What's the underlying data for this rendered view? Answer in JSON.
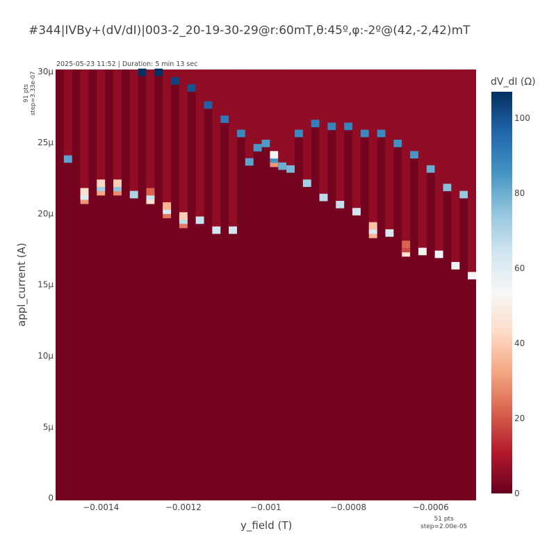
{
  "title": "#344|IVBy+(dV/dI)|003-2_20-19-30-29@r:60mT,θ:45º,φ:-2º@(42,-2,42)mT",
  "meta": "2025-05-23 11:52 | Duration: 5 min 13 sec",
  "y_points": {
    "line1": "91 pts",
    "line2": "step=3.33e-07"
  },
  "x_points": {
    "line1": "51 pts",
    "line2": "step=2.00e-05"
  },
  "colorbar": {
    "title": "dV_dI (Ω)",
    "range": [
      0,
      107
    ],
    "ticks": [
      0,
      20,
      40,
      60,
      80,
      100
    ],
    "colorscale": [
      "#67001f",
      "#b2182b",
      "#d6604d",
      "#f4a582",
      "#fddbc7",
      "#f7f7f7",
      "#d1e5f0",
      "#92c5de",
      "#4393c3",
      "#2166ac",
      "#053061"
    ]
  },
  "chart_data": {
    "type": "heatmap",
    "xlabel": "y_field (T)",
    "ylabel": "appl_current (A)",
    "xlim": [
      -0.0015,
      -0.0005
    ],
    "ylim": [
      0,
      3e-05
    ],
    "x_ticks": [
      {
        "value": -0.0014,
        "label": "−0.0014"
      },
      {
        "value": -0.0012,
        "label": "−0.0012"
      },
      {
        "value": -0.001,
        "label": "−0.001"
      },
      {
        "value": -0.0008,
        "label": "−0.0008"
      },
      {
        "value": -0.0006,
        "label": "−0.0006"
      }
    ],
    "y_ticks": [
      {
        "value": 0,
        "label": "0"
      },
      {
        "value": 5e-06,
        "label": "5μ"
      },
      {
        "value": 1e-05,
        "label": "10μ"
      },
      {
        "value": 1.5e-05,
        "label": "15μ"
      },
      {
        "value": 2e-05,
        "label": "20μ"
      },
      {
        "value": 2.5e-05,
        "label": "25μ"
      },
      {
        "value": 3e-05,
        "label": "30μ"
      }
    ],
    "x_start": -0.0015,
    "x_step": 2e-05,
    "x_count": 51,
    "y_start": 0,
    "y_step": 3.33e-07,
    "y_count": 91,
    "background_value": 2,
    "columns": [
      {
        "x": -0.0015,
        "ic": 3e-05,
        "spike": [],
        "stripe": 0
      },
      {
        "x": -0.00148,
        "ic": 2.36e-05,
        "spike": [
          {
            "y": 2.36e-05,
            "v": 82
          }
        ],
        "stripe": 6
      },
      {
        "x": -0.00146,
        "ic": 3e-05,
        "spike": [],
        "stripe": 0
      },
      {
        "x": -0.00144,
        "ic": 2.11e-05,
        "spike": [
          {
            "y": 2.07e-05,
            "v": 30
          },
          {
            "y": 2.1e-05,
            "v": 60
          },
          {
            "y": 2.13e-05,
            "v": 45
          }
        ],
        "stripe": 6
      },
      {
        "x": -0.00142,
        "ic": 3e-05,
        "spike": [],
        "stripe": 0
      },
      {
        "x": -0.0014,
        "ic": 2.15e-05,
        "spike": [
          {
            "y": 2.13e-05,
            "v": 32
          },
          {
            "y": 2.16e-05,
            "v": 72
          },
          {
            "y": 2.19e-05,
            "v": 42
          }
        ],
        "stripe": 6
      },
      {
        "x": -0.00138,
        "ic": 3e-05,
        "spike": [],
        "stripe": 0
      },
      {
        "x": -0.00136,
        "ic": 2.15e-05,
        "spike": [
          {
            "y": 2.13e-05,
            "v": 28
          },
          {
            "y": 2.16e-05,
            "v": 75
          },
          {
            "y": 2.19e-05,
            "v": 40
          }
        ],
        "stripe": 6
      },
      {
        "x": -0.00134,
        "ic": 3e-05,
        "spike": [],
        "stripe": 0
      },
      {
        "x": -0.00132,
        "ic": 2.11e-05,
        "spike": [
          {
            "y": 2.11e-05,
            "v": 70
          }
        ],
        "stripe": 6
      },
      {
        "x": -0.0013,
        "ic": 2.97e-05,
        "spike": [
          {
            "y": 2.97e-05,
            "v": 107
          }
        ],
        "stripe": 6
      },
      {
        "x": -0.00128,
        "ic": 2.11e-05,
        "spike": [
          {
            "y": 2.07e-05,
            "v": 45
          },
          {
            "y": 2.1e-05,
            "v": 65
          },
          {
            "y": 2.13e-05,
            "v": 22
          }
        ],
        "stripe": 6
      },
      {
        "x": -0.00126,
        "ic": 2.97e-05,
        "spike": [
          {
            "y": 2.97e-05,
            "v": 107
          }
        ],
        "stripe": 6
      },
      {
        "x": -0.00124,
        "ic": 2e-05,
        "spike": [
          {
            "y": 1.97e-05,
            "v": 25
          },
          {
            "y": 2e-05,
            "v": 62
          },
          {
            "y": 2.03e-05,
            "v": 35
          }
        ],
        "stripe": 6
      },
      {
        "x": -0.00122,
        "ic": 2.91e-05,
        "spike": [
          {
            "y": 2.91e-05,
            "v": 103
          }
        ],
        "stripe": 6
      },
      {
        "x": -0.0012,
        "ic": 1.92e-05,
        "spike": [
          {
            "y": 1.9e-05,
            "v": 25
          },
          {
            "y": 1.93e-05,
            "v": 68
          },
          {
            "y": 1.96e-05,
            "v": 40
          }
        ],
        "stripe": 6
      },
      {
        "x": -0.00118,
        "ic": 2.86e-05,
        "spike": [
          {
            "y": 2.86e-05,
            "v": 100
          }
        ],
        "stripe": 6
      },
      {
        "x": -0.00116,
        "ic": 1.93e-05,
        "spike": [
          {
            "y": 1.93e-05,
            "v": 66
          }
        ],
        "stripe": 6
      },
      {
        "x": -0.00114,
        "ic": 2.74e-05,
        "spike": [
          {
            "y": 2.74e-05,
            "v": 97
          }
        ],
        "stripe": 6
      },
      {
        "x": -0.00112,
        "ic": 1.86e-05,
        "spike": [
          {
            "y": 1.86e-05,
            "v": 64
          }
        ],
        "stripe": 6
      },
      {
        "x": -0.0011,
        "ic": 2.64e-05,
        "spike": [
          {
            "y": 2.64e-05,
            "v": 92
          }
        ],
        "stripe": 6
      },
      {
        "x": -0.00108,
        "ic": 1.86e-05,
        "spike": [
          {
            "y": 1.86e-05,
            "v": 64
          }
        ],
        "stripe": 6
      },
      {
        "x": -0.00106,
        "ic": 2.54e-05,
        "spike": [
          {
            "y": 2.54e-05,
            "v": 88
          }
        ],
        "stripe": 6
      },
      {
        "x": -0.00104,
        "ic": 2.34e-05,
        "spike": [
          {
            "y": 2.34e-05,
            "v": 82
          }
        ],
        "stripe": 6
      },
      {
        "x": -0.00102,
        "ic": 2.44e-05,
        "spike": [
          {
            "y": 2.44e-05,
            "v": 85
          }
        ],
        "stripe": 6
      },
      {
        "x": -0.001,
        "ic": 2.47e-05,
        "spike": [
          {
            "y": 2.47e-05,
            "v": 84
          }
        ],
        "stripe": 6
      },
      {
        "x": -0.00098,
        "ic": 2.37e-05,
        "spike": [
          {
            "y": 2.33e-05,
            "v": 30
          },
          {
            "y": 2.36e-05,
            "v": 85
          },
          {
            "y": 2.39e-05,
            "v": 55
          }
        ],
        "stripe": 6
      },
      {
        "x": -0.00096,
        "ic": 2.31e-05,
        "spike": [
          {
            "y": 2.31e-05,
            "v": 80
          }
        ],
        "stripe": 6
      },
      {
        "x": -0.00094,
        "ic": 2.29e-05,
        "spike": [
          {
            "y": 2.29e-05,
            "v": 78
          }
        ],
        "stripe": 6
      },
      {
        "x": -0.00092,
        "ic": 2.54e-05,
        "spike": [
          {
            "y": 2.54e-05,
            "v": 88
          }
        ],
        "stripe": 6
      },
      {
        "x": -0.0009,
        "ic": 2.19e-05,
        "spike": [
          {
            "y": 2.19e-05,
            "v": 72
          }
        ],
        "stripe": 6
      },
      {
        "x": -0.00088,
        "ic": 2.61e-05,
        "spike": [
          {
            "y": 2.61e-05,
            "v": 90
          }
        ],
        "stripe": 6
      },
      {
        "x": -0.00086,
        "ic": 2.09e-05,
        "spike": [
          {
            "y": 2.09e-05,
            "v": 68
          }
        ],
        "stripe": 6
      },
      {
        "x": -0.00084,
        "ic": 2.59e-05,
        "spike": [
          {
            "y": 2.59e-05,
            "v": 89
          }
        ],
        "stripe": 6
      },
      {
        "x": -0.00082,
        "ic": 2.04e-05,
        "spike": [
          {
            "y": 2.04e-05,
            "v": 66
          }
        ],
        "stripe": 6
      },
      {
        "x": -0.0008,
        "ic": 2.59e-05,
        "spike": [
          {
            "y": 2.59e-05,
            "v": 89
          }
        ],
        "stripe": 6
      },
      {
        "x": -0.00078,
        "ic": 1.99e-05,
        "spike": [
          {
            "y": 1.99e-05,
            "v": 64
          }
        ],
        "stripe": 6
      },
      {
        "x": -0.00076,
        "ic": 2.54e-05,
        "spike": [
          {
            "y": 2.54e-05,
            "v": 88
          }
        ],
        "stripe": 6
      },
      {
        "x": -0.00074,
        "ic": 1.86e-05,
        "spike": [
          {
            "y": 1.83e-05,
            "v": 35
          },
          {
            "y": 1.86e-05,
            "v": 62
          },
          {
            "y": 1.89e-05,
            "v": 38
          }
        ],
        "stripe": 6
      },
      {
        "x": -0.00072,
        "ic": 2.54e-05,
        "spike": [
          {
            "y": 2.54e-05,
            "v": 88
          }
        ],
        "stripe": 6
      },
      {
        "x": -0.0007,
        "ic": 1.84e-05,
        "spike": [
          {
            "y": 1.84e-05,
            "v": 62
          }
        ],
        "stripe": 6
      },
      {
        "x": -0.00068,
        "ic": 2.47e-05,
        "spike": [
          {
            "y": 2.47e-05,
            "v": 86
          }
        ],
        "stripe": 6
      },
      {
        "x": -0.00066,
        "ic": 1.73e-05,
        "spike": [
          {
            "y": 1.7e-05,
            "v": 45
          },
          {
            "y": 1.73e-05,
            "v": 18
          },
          {
            "y": 1.76e-05,
            "v": 22
          }
        ],
        "stripe": 6
      },
      {
        "x": -0.00064,
        "ic": 2.39e-05,
        "spike": [
          {
            "y": 2.39e-05,
            "v": 85
          }
        ],
        "stripe": 6
      },
      {
        "x": -0.00062,
        "ic": 1.71e-05,
        "spike": [
          {
            "y": 1.71e-05,
            "v": 52
          }
        ],
        "stripe": 6
      },
      {
        "x": -0.0006,
        "ic": 2.29e-05,
        "spike": [
          {
            "y": 2.29e-05,
            "v": 80
          }
        ],
        "stripe": 6
      },
      {
        "x": -0.00058,
        "ic": 1.69e-05,
        "spike": [
          {
            "y": 1.69e-05,
            "v": 55
          }
        ],
        "stripe": 6
      },
      {
        "x": -0.00056,
        "ic": 2.16e-05,
        "spike": [
          {
            "y": 2.16e-05,
            "v": 76
          }
        ],
        "stripe": 6
      },
      {
        "x": -0.00054,
        "ic": 1.61e-05,
        "spike": [
          {
            "y": 1.61e-05,
            "v": 55
          }
        ],
        "stripe": 6
      },
      {
        "x": -0.00052,
        "ic": 2.11e-05,
        "spike": [
          {
            "y": 2.11e-05,
            "v": 74
          }
        ],
        "stripe": 6
      },
      {
        "x": -0.0005,
        "ic": 1.54e-05,
        "spike": [
          {
            "y": 1.54e-05,
            "v": 55
          }
        ],
        "stripe": 6
      }
    ]
  }
}
